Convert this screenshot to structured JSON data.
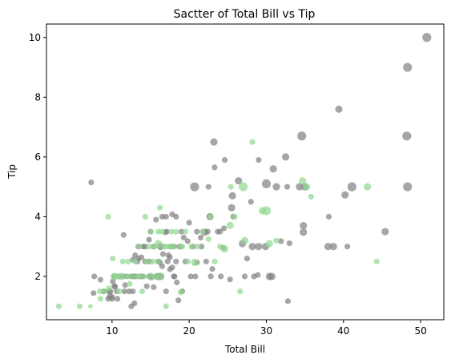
{
  "chart_data": {
    "type": "scatter",
    "title": "Sactter of Total Bill vs Tip",
    "xlabel": "Total Bill",
    "ylabel": "Tip",
    "xlim": [
      1.5,
      53.0
    ],
    "ylim": [
      0.55,
      10.45
    ],
    "xticks": [
      10,
      20,
      30,
      40,
      50
    ],
    "yticks": [
      2,
      4,
      6,
      8,
      10
    ],
    "grid": false,
    "legend": "none",
    "colors": {
      "gray": "#808080",
      "green": "#90d890"
    },
    "series": [
      {
        "color": "gray",
        "points": [
          [
            50.8,
            10.0,
            4
          ],
          [
            48.3,
            9.0,
            4
          ],
          [
            48.2,
            6.7,
            4
          ],
          [
            48.3,
            5.0,
            4
          ],
          [
            39.4,
            7.6,
            3
          ],
          [
            34.6,
            6.7,
            4
          ],
          [
            32.5,
            6.0,
            3
          ],
          [
            30.9,
            5.6,
            3
          ],
          [
            29.0,
            5.9,
            2
          ],
          [
            23.2,
            6.5,
            3
          ],
          [
            23.3,
            5.65,
            2
          ],
          [
            24.6,
            5.9,
            2
          ],
          [
            7.3,
            5.15,
            2
          ],
          [
            26.4,
            5.2,
            3
          ],
          [
            30.0,
            5.1,
            4
          ],
          [
            31.3,
            5.0,
            3
          ],
          [
            32.7,
            5.0,
            2
          ],
          [
            34.3,
            5.0,
            3
          ],
          [
            35.0,
            5.0,
            3
          ],
          [
            41.1,
            5.0,
            4
          ],
          [
            20.7,
            5.0,
            4
          ],
          [
            22.5,
            5.0,
            2
          ],
          [
            25.6,
            4.7,
            3
          ],
          [
            25.5,
            4.3,
            3
          ],
          [
            25.7,
            4.0,
            2
          ],
          [
            28.0,
            4.5,
            2
          ],
          [
            40.2,
            4.73,
            3
          ],
          [
            38.1,
            4.0,
            2
          ],
          [
            34.8,
            3.7,
            3
          ],
          [
            22.7,
            4.0,
            3
          ],
          [
            23.7,
            3.5,
            2
          ],
          [
            20.0,
            3.8,
            2
          ],
          [
            17.0,
            4.0,
            2
          ],
          [
            16.5,
            4.0,
            2
          ],
          [
            17.8,
            4.08,
            2
          ],
          [
            18.3,
            4.0,
            2
          ],
          [
            19.0,
            3.5,
            2
          ],
          [
            19.8,
            3.18,
            2
          ],
          [
            21.0,
            3.5,
            2
          ],
          [
            22.0,
            3.48,
            3
          ],
          [
            24.0,
            3.5,
            2
          ],
          [
            26.9,
            3.1,
            3
          ],
          [
            28.2,
            3.0,
            3
          ],
          [
            29.9,
            3.0,
            3
          ],
          [
            31.9,
            3.18,
            2
          ],
          [
            33.0,
            3.11,
            2
          ],
          [
            34.8,
            3.48,
            3
          ],
          [
            38.0,
            3.0,
            3
          ],
          [
            38.7,
            3.0,
            3
          ],
          [
            40.5,
            3.0,
            2
          ],
          [
            45.4,
            3.5,
            3
          ],
          [
            11.5,
            3.39,
            2
          ],
          [
            13.4,
            3.0,
            2
          ],
          [
            14.3,
            3.0,
            2
          ],
          [
            14.8,
            3.23,
            2
          ],
          [
            15.4,
            3.0,
            2
          ],
          [
            16.0,
            2.5,
            2
          ],
          [
            16.3,
            3.0,
            3
          ],
          [
            17.3,
            2.71,
            2
          ],
          [
            17.5,
            2.64,
            2
          ],
          [
            18.3,
            2.5,
            2
          ],
          [
            18.0,
            3.0,
            2
          ],
          [
            19.5,
            2.5,
            2
          ],
          [
            20.5,
            3.0,
            2
          ],
          [
            21.0,
            2.47,
            2
          ],
          [
            22.2,
            2.5,
            2
          ],
          [
            23.0,
            2.25,
            2
          ],
          [
            22.8,
            2.0,
            2
          ],
          [
            24.1,
            2.0,
            2
          ],
          [
            25.3,
            1.9,
            2
          ],
          [
            27.5,
            2.6,
            2
          ],
          [
            28.4,
            2.0,
            2
          ],
          [
            29.0,
            3.0,
            3
          ],
          [
            30.4,
            2.0,
            3
          ],
          [
            30.7,
            2.0,
            3
          ],
          [
            28.9,
            2.05,
            2
          ],
          [
            32.8,
            1.17,
            2
          ],
          [
            27.2,
            2.0,
            2
          ],
          [
            24.4,
            2.96,
            2
          ],
          [
            7.6,
            1.44,
            2
          ],
          [
            7.7,
            2.0,
            2
          ],
          [
            8.5,
            1.89,
            2
          ],
          [
            8.9,
            1.5,
            2
          ],
          [
            9.6,
            1.5,
            2
          ],
          [
            9.8,
            1.5,
            2
          ],
          [
            10.0,
            1.32,
            2
          ],
          [
            10.1,
            1.83,
            2
          ],
          [
            10.3,
            1.67,
            2
          ],
          [
            10.6,
            1.5,
            2
          ],
          [
            10.3,
            2.0,
            2
          ],
          [
            10.8,
            2.0,
            2
          ],
          [
            11.4,
            2.0,
            2
          ],
          [
            11.6,
            1.5,
            2
          ],
          [
            11.9,
            2.0,
            2
          ],
          [
            12.2,
            1.5,
            2
          ],
          [
            12.5,
            2.0,
            2
          ],
          [
            12.7,
            2.0,
            2
          ],
          [
            12.9,
            1.1,
            2
          ],
          [
            13.0,
            2.0,
            2
          ],
          [
            13.3,
            2.5,
            2
          ],
          [
            13.5,
            2.0,
            2
          ],
          [
            13.8,
            2.0,
            2
          ],
          [
            14.0,
            2.0,
            2
          ],
          [
            14.3,
            2.5,
            2
          ],
          [
            14.8,
            2.0,
            2
          ],
          [
            15.0,
            2.0,
            2
          ],
          [
            15.4,
            1.64,
            2
          ],
          [
            15.7,
            2.0,
            2
          ],
          [
            16.0,
            2.0,
            3
          ],
          [
            16.3,
            2.0,
            3
          ],
          [
            17.0,
            1.5,
            2
          ],
          [
            17.5,
            2.24,
            2
          ],
          [
            18.0,
            2.0,
            2
          ],
          [
            18.4,
            1.8,
            2
          ],
          [
            19.1,
            1.5,
            2
          ],
          [
            12.7,
            2.56,
            2
          ],
          [
            13.0,
            2.71,
            2
          ],
          [
            13.4,
            2.6,
            2
          ],
          [
            11.7,
            1.71,
            2
          ],
          [
            9.5,
            1.25,
            2
          ],
          [
            10.0,
            1.25,
            2
          ],
          [
            10.4,
            1.66,
            2
          ],
          [
            10.7,
            1.25,
            2
          ],
          [
            12.5,
            1.0,
            2
          ],
          [
            14.8,
            2.5,
            2
          ],
          [
            16.6,
            2.75,
            2
          ],
          [
            17.8,
            2.3,
            2
          ],
          [
            20.2,
            2.0,
            2
          ],
          [
            20.8,
            2.0,
            2
          ],
          [
            21.6,
            3.0,
            2
          ],
          [
            14.0,
            3.0,
            2
          ],
          [
            15.0,
            3.5,
            2
          ],
          [
            17.1,
            3.5,
            2
          ],
          [
            16.9,
            3.48,
            2
          ],
          [
            17.6,
            3.0,
            2
          ],
          [
            18.9,
            3.0,
            2
          ],
          [
            22.4,
            3.5,
            2
          ],
          [
            21.5,
            3.3,
            2
          ],
          [
            24.5,
            3.61,
            2
          ],
          [
            15.7,
            3.9,
            2
          ],
          [
            19.3,
            3.3,
            2
          ],
          [
            18.7,
            3.0,
            2
          ],
          [
            16.2,
            2.47,
            2
          ],
          [
            16.5,
            2.34,
            2
          ],
          [
            9.7,
            1.34,
            2
          ],
          [
            13.8,
            2.64,
            2
          ],
          [
            15.1,
            1.96,
            2
          ],
          [
            12.7,
            1.5,
            2
          ],
          [
            14.5,
            1.67,
            2
          ],
          [
            18.1,
            2.0,
            2
          ],
          [
            18.6,
            1.2,
            2
          ],
          [
            17.2,
            2.5,
            2
          ]
        ]
      },
      {
        "color": "green",
        "points": [
          [
            3.1,
            1.0,
            2
          ],
          [
            5.8,
            1.0,
            2
          ],
          [
            7.2,
            1.0,
            1
          ],
          [
            8.5,
            1.25,
            2
          ],
          [
            8.4,
            1.5,
            2
          ],
          [
            9.5,
            4.0,
            2
          ],
          [
            10.1,
            2.6,
            2
          ],
          [
            10.6,
            2.0,
            2
          ],
          [
            10.9,
            1.5,
            2
          ],
          [
            11.4,
            2.5,
            2
          ],
          [
            12.0,
            2.0,
            2
          ],
          [
            12.3,
            1.75,
            2
          ],
          [
            12.6,
            2.0,
            2
          ],
          [
            13.0,
            2.5,
            2
          ],
          [
            13.3,
            2.0,
            2
          ],
          [
            13.5,
            3.0,
            2
          ],
          [
            13.9,
            1.5,
            2
          ],
          [
            14.3,
            4.0,
            2
          ],
          [
            14.8,
            3.0,
            2
          ],
          [
            15.0,
            3.5,
            2
          ],
          [
            15.5,
            3.0,
            2
          ],
          [
            16.0,
            2.5,
            2
          ],
          [
            16.2,
            4.3,
            2
          ],
          [
            16.5,
            3.5,
            2
          ],
          [
            16.8,
            3.0,
            2
          ],
          [
            17.0,
            1.0,
            2
          ],
          [
            17.5,
            3.0,
            2
          ],
          [
            17.9,
            3.0,
            2
          ],
          [
            18.3,
            3.5,
            2
          ],
          [
            18.9,
            1.47,
            2
          ],
          [
            19.1,
            3.0,
            2
          ],
          [
            19.8,
            2.5,
            2
          ],
          [
            20.3,
            3.0,
            2
          ],
          [
            20.7,
            2.47,
            3
          ],
          [
            21.1,
            3.0,
            2
          ],
          [
            21.7,
            3.5,
            2
          ],
          [
            22.5,
            3.25,
            2
          ],
          [
            22.8,
            4.0,
            2
          ],
          [
            23.3,
            2.5,
            2
          ],
          [
            24.0,
            3.0,
            2
          ],
          [
            24.6,
            2.92,
            3
          ],
          [
            25.3,
            3.71,
            3
          ],
          [
            25.4,
            5.0,
            2
          ],
          [
            25.9,
            4.0,
            2
          ],
          [
            26.6,
            1.5,
            2
          ],
          [
            27.0,
            5.0,
            4
          ],
          [
            27.2,
            3.2,
            3
          ],
          [
            28.2,
            6.5,
            2
          ],
          [
            29.5,
            4.2,
            3
          ],
          [
            30.0,
            4.2,
            4
          ],
          [
            30.4,
            3.1,
            3
          ],
          [
            31.3,
            3.2,
            2
          ],
          [
            34.7,
            5.2,
            3
          ],
          [
            35.2,
            5.0,
            3
          ],
          [
            35.8,
            4.67,
            2
          ],
          [
            43.1,
            5.0,
            3
          ],
          [
            44.3,
            2.5,
            2
          ],
          [
            9.0,
            1.5,
            2
          ],
          [
            9.6,
            1.6,
            2
          ],
          [
            10.3,
            2.0,
            3
          ],
          [
            11.2,
            2.0,
            3
          ],
          [
            12.1,
            2.5,
            2
          ],
          [
            13.6,
            2.0,
            2
          ],
          [
            14.1,
            2.0,
            2
          ],
          [
            15.0,
            2.0,
            3
          ],
          [
            15.6,
            2.0,
            2
          ],
          [
            16.2,
            2.0,
            3
          ],
          [
            16.0,
            3.5,
            2
          ],
          [
            17.0,
            3.0,
            2
          ],
          [
            18.8,
            3.0,
            2
          ],
          [
            17.7,
            3.5,
            2
          ],
          [
            19.5,
            3.5,
            2
          ],
          [
            14.5,
            2.5,
            2
          ],
          [
            15.3,
            2.5,
            2
          ],
          [
            16.0,
            3.1,
            3
          ]
        ]
      }
    ]
  }
}
